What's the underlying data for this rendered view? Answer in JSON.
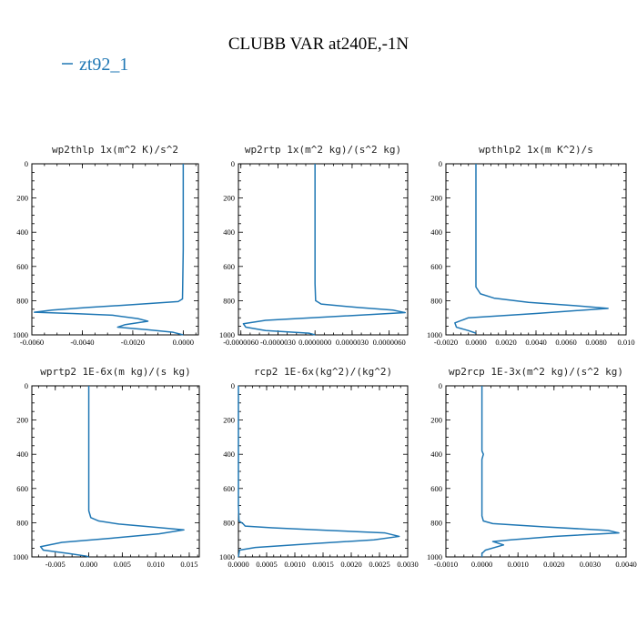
{
  "figure": {
    "title": "CLUBB VAR at240E,-1N",
    "legend": "zt92_1",
    "line_color": "#1f77b4"
  },
  "chart_data": [
    {
      "type": "line",
      "title": "wp2thlp  1x(m^2 K)/s^2",
      "xlim": [
        -0.006,
        0.0006
      ],
      "ylim": [
        1000,
        0
      ],
      "xticks": [
        -0.006,
        -0.004,
        -0.002,
        0.0
      ],
      "xtick_labels": [
        "-0.0060",
        "-0.0040",
        "-0.0020",
        "0.0000"
      ],
      "yticks": [
        0,
        200,
        400,
        600,
        800,
        1000
      ],
      "series": [
        {
          "x": [
            0.0,
            0.0,
            0.0,
            -2e-05,
            -3e-05,
            -0.0002,
            -0.0022,
            -0.0038,
            -0.0052,
            -0.0059,
            -0.0044,
            -0.0028,
            -0.0018,
            -0.0014,
            -0.0023,
            -0.0026,
            -0.0014,
            -0.0004,
            0.0
          ],
          "y": [
            0,
            400,
            500,
            700,
            790,
            805,
            825,
            840,
            855,
            868,
            875,
            885,
            905,
            920,
            940,
            955,
            970,
            985,
            1000
          ]
        }
      ]
    },
    {
      "type": "line",
      "title": "wp2rtp  1x(m^2 kg)/(s^2 kg)",
      "xlim": [
        -6.2e-06,
        7.5e-06
      ],
      "ylim": [
        1000,
        0
      ],
      "xticks": [
        -6e-06,
        -3e-06,
        0.0,
        3e-06,
        6e-06
      ],
      "xtick_labels": [
        "-0.0000060",
        "-0.0000030",
        "0.0000000",
        "0.0000030",
        "0.0000060"
      ],
      "yticks": [
        0,
        200,
        400,
        600,
        800,
        1000
      ],
      "series": [
        {
          "x": [
            0.0,
            0.0,
            0.0,
            5e-08,
            5e-07,
            3.5e-06,
            6.3e-06,
            7.3e-06,
            1e-06,
            -4e-06,
            -5.8e-06,
            -5.6e-06,
            -4e-06,
            -5e-07,
            0.0
          ],
          "y": [
            0,
            500,
            700,
            800,
            820,
            840,
            855,
            870,
            895,
            915,
            935,
            955,
            975,
            990,
            1000
          ]
        }
      ]
    },
    {
      "type": "line",
      "title": "wpthlp2  1x(m K^2)/s",
      "xlim": [
        -0.002,
        0.01
      ],
      "ylim": [
        1000,
        0
      ],
      "xticks": [
        -0.002,
        0.0,
        0.002,
        0.004,
        0.006,
        0.008,
        0.01
      ],
      "xtick_labels": [
        "-0.0020",
        "0.0000",
        "0.0020",
        "0.0040",
        "0.0060",
        "0.0080",
        "0.010"
      ],
      "yticks": [
        0,
        200,
        400,
        600,
        800,
        1000
      ],
      "series": [
        {
          "x": [
            0.0,
            0.0,
            0.0,
            0.0003,
            0.0012,
            0.0035,
            0.0067,
            0.0088,
            0.004,
            -0.0005,
            -0.0014,
            -0.0013,
            -0.0005,
            0.0
          ],
          "y": [
            0,
            500,
            720,
            760,
            785,
            810,
            830,
            845,
            875,
            900,
            930,
            955,
            975,
            990
          ]
        }
      ]
    },
    {
      "type": "line",
      "title": "wprtp2  1E-6x(m kg)/(s kg)",
      "xlim": [
        -0.0085,
        0.0165
      ],
      "ylim": [
        1000,
        0
      ],
      "xticks": [
        -0.005,
        0.0,
        0.005,
        0.01,
        0.015
      ],
      "xtick_labels": [
        "-0.005",
        "0.000",
        "0.005",
        "0.010",
        "0.015"
      ],
      "yticks": [
        0,
        200,
        400,
        600,
        800,
        1000
      ],
      "series": [
        {
          "x": [
            0.0,
            0.0,
            0.0,
            0.0003,
            0.0015,
            0.0045,
            0.0095,
            0.0142,
            0.0105,
            0.0035,
            -0.004,
            -0.0072,
            -0.0068,
            -0.003,
            -0.0004,
            0.0
          ],
          "y": [
            0,
            500,
            730,
            770,
            790,
            808,
            825,
            842,
            865,
            890,
            915,
            940,
            960,
            980,
            995,
            1000
          ]
        }
      ]
    },
    {
      "type": "line",
      "title": "rcp2  1E-6x(kg^2)/(kg^2)",
      "xlim": [
        0.0,
        0.003
      ],
      "ylim": [
        1000,
        0
      ],
      "xticks": [
        0.0,
        0.0005,
        0.001,
        0.0015,
        0.002,
        0.0025,
        0.003
      ],
      "xtick_labels": [
        "0.0000",
        "0.0005",
        "0.0010",
        "0.0015",
        "0.0020",
        "0.0025",
        "0.0030"
      ],
      "yticks": [
        0,
        200,
        400,
        600,
        800,
        1000
      ],
      "series": [
        {
          "x": [
            0.0,
            0.0,
            1e-05,
            8e-05,
            0.00012,
            0.0006,
            0.0016,
            0.0026,
            0.00285,
            0.0024,
            0.0012,
            0.0003,
            2e-05,
            0.0
          ],
          "y": [
            0,
            700,
            790,
            805,
            820,
            830,
            845,
            860,
            880,
            900,
            925,
            945,
            960,
            1000
          ]
        }
      ]
    },
    {
      "type": "line",
      "title": "wp2rcp  1E-3x(m^2 kg)/(s^2 kg)",
      "xlim": [
        -0.001,
        0.004
      ],
      "ylim": [
        1000,
        0
      ],
      "xticks": [
        -0.001,
        0.0,
        0.001,
        0.002,
        0.003,
        0.004
      ],
      "xtick_labels": [
        "-0.0010",
        "0.0000",
        "0.0010",
        "0.0020",
        "0.0030",
        "0.0040"
      ],
      "yticks": [
        0,
        200,
        400,
        600,
        800,
        1000
      ],
      "series": [
        {
          "x": [
            0.0,
            0.0,
            4e-05,
            0.0,
            0.0,
            0.0,
            4e-05,
            0.0003,
            0.0018,
            0.0035,
            0.0038,
            0.002,
            0.0008,
            0.0003,
            0.0006,
            0.0001,
            0.0,
            0.0
          ],
          "y": [
            0,
            380,
            400,
            430,
            600,
            760,
            790,
            805,
            825,
            845,
            860,
            880,
            900,
            910,
            930,
            960,
            980,
            1000
          ]
        }
      ]
    }
  ]
}
